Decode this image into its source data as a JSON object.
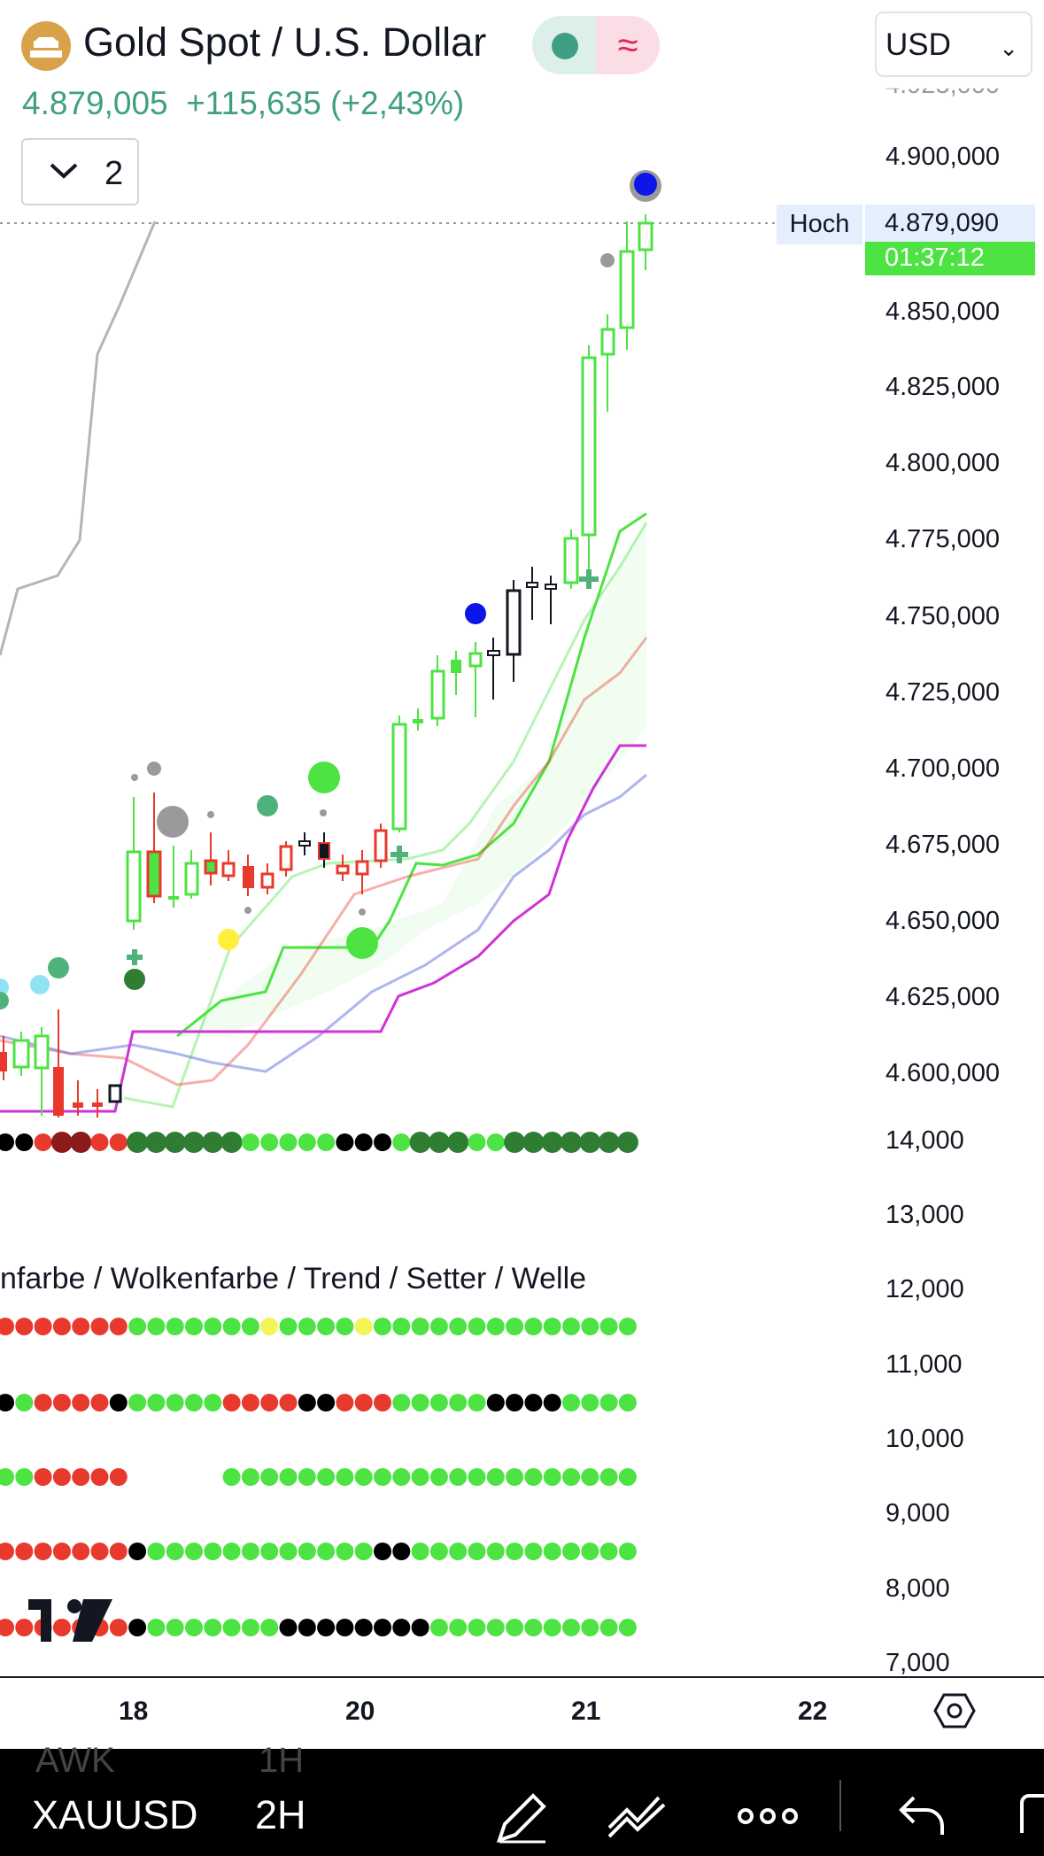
{
  "header": {
    "title": "Gold Spot / U.S. Dollar",
    "price": "4.879,005",
    "change": "+115,635",
    "change_pct": "(+2,43%)",
    "status_icon": "wave-icon",
    "currency": "USD"
  },
  "chart_controls": {
    "collapse_count": "2"
  },
  "price_axis": {
    "labels": [
      "4.900,000",
      "4.850,000",
      "4.825,000",
      "4.800,000",
      "4.775,000",
      "4.750,000",
      "4.725,000",
      "4.700,000",
      "4.675,000",
      "4.650,000",
      "4.625,000",
      "4.600,000"
    ],
    "high_label": "Hoch",
    "current_price": "4.879,090",
    "countdown": "01:37:12"
  },
  "indicator_axis": {
    "labels": [
      "14,000",
      "13,000",
      "12,000",
      "11,000",
      "10,000",
      "9,000",
      "8,000",
      "7,000"
    ]
  },
  "indicator_legend": "nfarbe / Wolkenfarbe / Trend / Setter / Welle",
  "time_axis": {
    "labels": [
      "18",
      "20",
      "21",
      "22"
    ]
  },
  "bottom_bar": {
    "symbol": "XAUUSD",
    "interval": "2H",
    "ghost_symbol": "AWK",
    "ghost_interval": "1H"
  },
  "colors": {
    "up": "#4ce343",
    "down": "#e8392d",
    "accent_green": "#3f9f84",
    "magenta": "#d032d8",
    "blue": "#0000ee"
  }
}
